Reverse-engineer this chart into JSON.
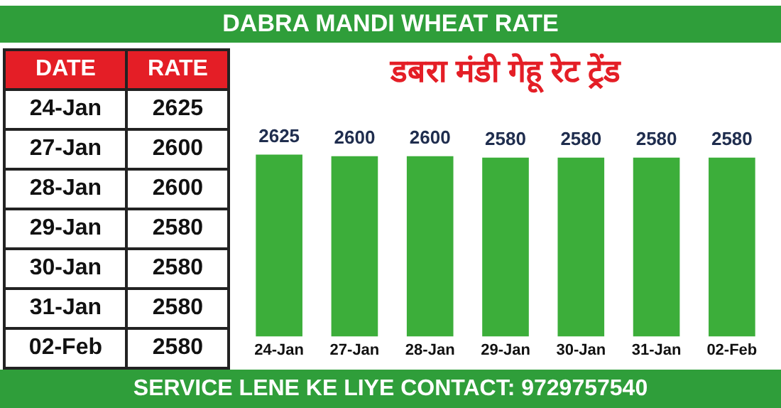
{
  "chart_data": [
    {
      "type": "other",
      "annotations": [
        "DATE",
        "RATE",
        "24-Jan",
        "2625",
        "27-Jan",
        "2600",
        "28-Jan",
        "2600",
        "29-Jan",
        "2580",
        "30-Jan",
        "2580",
        "31-Jan",
        "2580",
        "02-Feb",
        "2580"
      ]
    },
    {
      "type": "bar",
      "title": "डबरा मंडी गेहू रेट ट्रेंड",
      "subtitle": "DABRA MANDI WHEAT RATE",
      "categories": [
        "24-Jan",
        "27-Jan",
        "28-Jan",
        "29-Jan",
        "30-Jan",
        "31-Jan",
        "02-Feb"
      ],
      "values": [
        2625,
        2600,
        2600,
        2580,
        2580,
        2580,
        2580
      ],
      "color": "#3cae3a",
      "data_labels": true,
      "tick_labels": "x",
      "annotations": [
        "SERVICE LENE KE LIYE CONTACT: 9729757540"
      ]
    }
  ]
}
